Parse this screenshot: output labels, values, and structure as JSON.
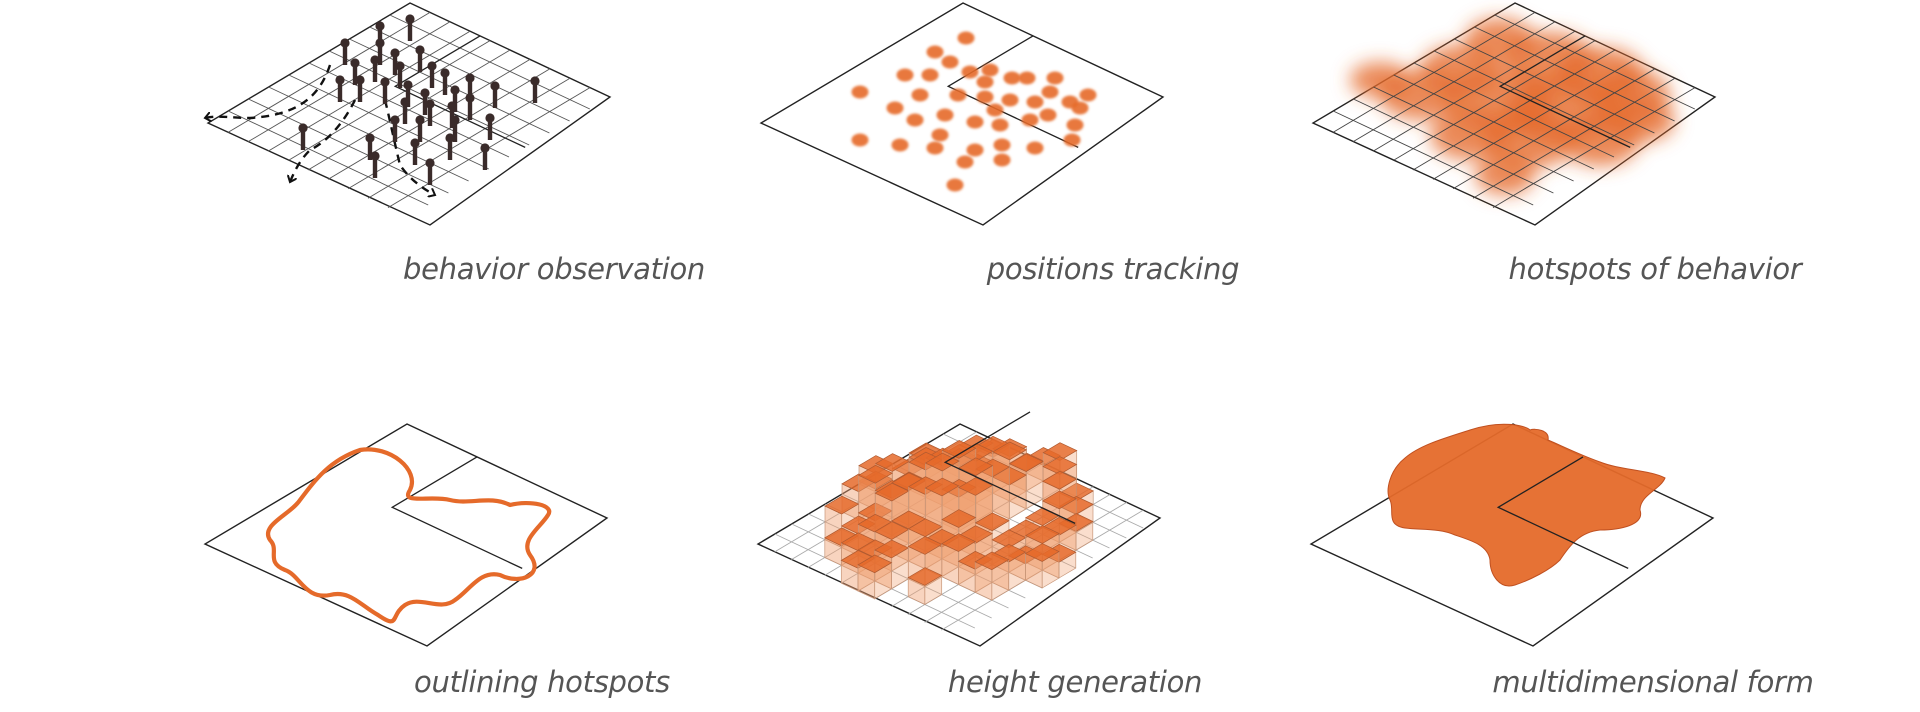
{
  "accent_color": "#e56a2a",
  "accent_light": "#f0a070",
  "ink_color": "#3a2b2a",
  "panels": [
    {
      "caption": "behavior observation"
    },
    {
      "caption": "positions tracking"
    },
    {
      "caption": "hotspots of behavior"
    },
    {
      "caption": "outlining hotspots"
    },
    {
      "caption": "height generation"
    },
    {
      "caption": "multidimensional form"
    }
  ]
}
